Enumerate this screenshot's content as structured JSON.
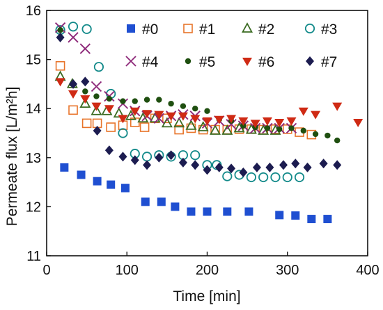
{
  "chart_data": {
    "type": "scatter",
    "title": "",
    "xlabel": "Time [min]",
    "ylabel": "Permeate flux [L/m²h]",
    "xlim": [
      0,
      400
    ],
    "ylim": [
      11,
      16
    ],
    "xticks": [
      "0",
      "100",
      "200",
      "300",
      "400"
    ],
    "yticks": [
      "11",
      "12",
      "13",
      "14",
      "15",
      "16"
    ],
    "grid": false,
    "legend_position": "top-right, 2 rows x 4 columns",
    "series": [
      {
        "name": "#0",
        "marker": "square-filled",
        "color": "#1f4fd1",
        "x": [
          22,
          43,
          63,
          80,
          98,
          123,
          143,
          160,
          180,
          200,
          225,
          252,
          290,
          310,
          330,
          350
        ],
        "y": [
          12.8,
          12.65,
          12.52,
          12.45,
          12.38,
          12.1,
          12.1,
          12.0,
          11.9,
          11.9,
          11.9,
          11.9,
          11.83,
          11.82,
          11.75,
          11.75
        ]
      },
      {
        "name": "#1",
        "marker": "square-open",
        "color": "#e8742a",
        "x": [
          17,
          33,
          50,
          63,
          80,
          95,
          110,
          122,
          135,
          150,
          165,
          180,
          195,
          210,
          225,
          240,
          255,
          270,
          285,
          300,
          315,
          330
        ],
        "y": [
          14.87,
          13.97,
          13.7,
          13.7,
          13.62,
          13.66,
          13.72,
          13.62,
          13.8,
          13.8,
          13.57,
          13.6,
          13.57,
          13.57,
          13.57,
          13.58,
          13.58,
          13.57,
          13.58,
          13.58,
          13.52,
          13.47
        ]
      },
      {
        "name": "#2",
        "marker": "triangle-open",
        "color": "#3b6b22",
        "x": [
          17,
          32,
          48,
          62,
          75,
          90,
          105,
          120,
          135,
          150,
          165,
          180,
          195,
          210,
          225,
          240,
          255,
          270,
          285
        ],
        "y": [
          14.65,
          14.5,
          14.1,
          13.95,
          13.95,
          13.9,
          13.85,
          13.8,
          13.8,
          13.7,
          13.7,
          13.65,
          13.62,
          13.55,
          13.55,
          13.6,
          13.57,
          13.55,
          13.55
        ]
      },
      {
        "name": "#3",
        "marker": "circle-open",
        "color": "#138a8a",
        "x": [
          17,
          33,
          50,
          65,
          80,
          95,
          110,
          125,
          140,
          155,
          170,
          185,
          200,
          212,
          225,
          240,
          255,
          270,
          285,
          300,
          315
        ],
        "y": [
          15.6,
          15.67,
          15.62,
          14.85,
          14.3,
          13.5,
          13.08,
          13.02,
          13.05,
          13.02,
          13.05,
          13.05,
          12.85,
          12.85,
          12.62,
          12.65,
          12.6,
          12.6,
          12.6,
          12.6,
          12.6
        ]
      },
      {
        "name": "#4",
        "marker": "cross",
        "color": "#8e2a7a",
        "x": [
          17,
          33,
          48,
          62,
          78,
          95,
          110,
          125,
          140,
          155,
          170,
          185,
          200,
          215,
          230,
          245,
          260,
          275,
          290,
          305
        ],
        "y": [
          15.65,
          15.45,
          15.22,
          14.45,
          14.25,
          14.1,
          13.95,
          13.85,
          13.8,
          13.85,
          13.88,
          13.85,
          13.7,
          13.75,
          13.68,
          13.65,
          13.6,
          13.6,
          13.6,
          13.6
        ]
      },
      {
        "name": "#5",
        "marker": "circle-filled",
        "color": "#1f4f10",
        "x": [
          17,
          32,
          48,
          62,
          78,
          95,
          110,
          125,
          140,
          155,
          170,
          185,
          200,
          215,
          230,
          245,
          260,
          275,
          290,
          305,
          320,
          335,
          350,
          362
        ],
        "y": [
          15.6,
          14.5,
          14.35,
          14.25,
          14.2,
          14.15,
          14.15,
          14.18,
          14.18,
          14.1,
          14.05,
          14.0,
          13.95,
          13.78,
          13.75,
          13.65,
          13.62,
          13.6,
          13.58,
          13.6,
          13.55,
          13.48,
          13.45,
          13.35
        ]
      },
      {
        "name": "#6",
        "marker": "triangle-down-filled",
        "color": "#cf2a14",
        "x": [
          17,
          33,
          48,
          62,
          78,
          95,
          110,
          125,
          140,
          155,
          170,
          185,
          200,
          215,
          230,
          245,
          260,
          275,
          290,
          305,
          320,
          335,
          362,
          388
        ],
        "y": [
          14.55,
          14.3,
          14.2,
          14.05,
          14.0,
          13.8,
          13.95,
          13.9,
          13.88,
          13.85,
          13.85,
          13.8,
          13.75,
          13.78,
          13.8,
          13.75,
          13.7,
          13.75,
          13.72,
          13.75,
          13.95,
          13.88,
          14.05,
          13.72
        ]
      },
      {
        "name": "#7",
        "marker": "diamond-filled",
        "color": "#1c1c50",
        "x": [
          17,
          33,
          48,
          63,
          78,
          95,
          110,
          125,
          140,
          155,
          170,
          185,
          200,
          215,
          230,
          245,
          262,
          278,
          295,
          310,
          325,
          345,
          362
        ],
        "y": [
          15.45,
          14.5,
          14.55,
          13.55,
          13.15,
          13.02,
          12.95,
          12.85,
          13.0,
          13.05,
          12.9,
          12.85,
          12.75,
          12.8,
          12.78,
          12.7,
          12.8,
          12.8,
          12.85,
          12.88,
          12.8,
          12.88,
          12.85
        ]
      }
    ]
  }
}
